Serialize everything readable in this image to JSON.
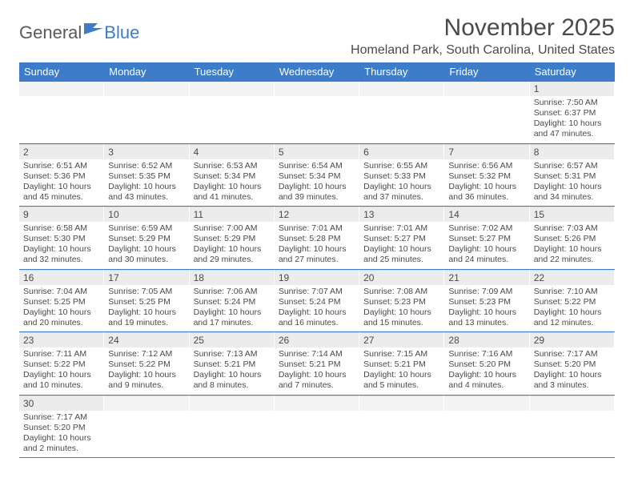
{
  "brand": {
    "part1": "General",
    "part2": "Blue"
  },
  "title": "November 2025",
  "location": "Homeland Park, South Carolina, United States",
  "colors": {
    "header_bg": "#3d7cc9",
    "header_text": "#ffffff",
    "daynum_bg": "#ececec",
    "text": "#4a4a4a",
    "row_border": "#3d7cc9"
  },
  "typography": {
    "title_fontsize": 30,
    "location_fontsize": 16,
    "dayhead_fontsize": 13,
    "daynum_fontsize": 12,
    "body_fontsize": 10.5
  },
  "day_headers": [
    "Sunday",
    "Monday",
    "Tuesday",
    "Wednesday",
    "Thursday",
    "Friday",
    "Saturday"
  ],
  "weeks": [
    [
      {
        "n": "",
        "sunrise": "",
        "sunset": "",
        "daylight": ""
      },
      {
        "n": "",
        "sunrise": "",
        "sunset": "",
        "daylight": ""
      },
      {
        "n": "",
        "sunrise": "",
        "sunset": "",
        "daylight": ""
      },
      {
        "n": "",
        "sunrise": "",
        "sunset": "",
        "daylight": ""
      },
      {
        "n": "",
        "sunrise": "",
        "sunset": "",
        "daylight": ""
      },
      {
        "n": "",
        "sunrise": "",
        "sunset": "",
        "daylight": ""
      },
      {
        "n": "1",
        "sunrise": "Sunrise: 7:50 AM",
        "sunset": "Sunset: 6:37 PM",
        "daylight": "Daylight: 10 hours and 47 minutes."
      }
    ],
    [
      {
        "n": "2",
        "sunrise": "Sunrise: 6:51 AM",
        "sunset": "Sunset: 5:36 PM",
        "daylight": "Daylight: 10 hours and 45 minutes."
      },
      {
        "n": "3",
        "sunrise": "Sunrise: 6:52 AM",
        "sunset": "Sunset: 5:35 PM",
        "daylight": "Daylight: 10 hours and 43 minutes."
      },
      {
        "n": "4",
        "sunrise": "Sunrise: 6:53 AM",
        "sunset": "Sunset: 5:34 PM",
        "daylight": "Daylight: 10 hours and 41 minutes."
      },
      {
        "n": "5",
        "sunrise": "Sunrise: 6:54 AM",
        "sunset": "Sunset: 5:34 PM",
        "daylight": "Daylight: 10 hours and 39 minutes."
      },
      {
        "n": "6",
        "sunrise": "Sunrise: 6:55 AM",
        "sunset": "Sunset: 5:33 PM",
        "daylight": "Daylight: 10 hours and 37 minutes."
      },
      {
        "n": "7",
        "sunrise": "Sunrise: 6:56 AM",
        "sunset": "Sunset: 5:32 PM",
        "daylight": "Daylight: 10 hours and 36 minutes."
      },
      {
        "n": "8",
        "sunrise": "Sunrise: 6:57 AM",
        "sunset": "Sunset: 5:31 PM",
        "daylight": "Daylight: 10 hours and 34 minutes."
      }
    ],
    [
      {
        "n": "9",
        "sunrise": "Sunrise: 6:58 AM",
        "sunset": "Sunset: 5:30 PM",
        "daylight": "Daylight: 10 hours and 32 minutes."
      },
      {
        "n": "10",
        "sunrise": "Sunrise: 6:59 AM",
        "sunset": "Sunset: 5:29 PM",
        "daylight": "Daylight: 10 hours and 30 minutes."
      },
      {
        "n": "11",
        "sunrise": "Sunrise: 7:00 AM",
        "sunset": "Sunset: 5:29 PM",
        "daylight": "Daylight: 10 hours and 29 minutes."
      },
      {
        "n": "12",
        "sunrise": "Sunrise: 7:01 AM",
        "sunset": "Sunset: 5:28 PM",
        "daylight": "Daylight: 10 hours and 27 minutes."
      },
      {
        "n": "13",
        "sunrise": "Sunrise: 7:01 AM",
        "sunset": "Sunset: 5:27 PM",
        "daylight": "Daylight: 10 hours and 25 minutes."
      },
      {
        "n": "14",
        "sunrise": "Sunrise: 7:02 AM",
        "sunset": "Sunset: 5:27 PM",
        "daylight": "Daylight: 10 hours and 24 minutes."
      },
      {
        "n": "15",
        "sunrise": "Sunrise: 7:03 AM",
        "sunset": "Sunset: 5:26 PM",
        "daylight": "Daylight: 10 hours and 22 minutes."
      }
    ],
    [
      {
        "n": "16",
        "sunrise": "Sunrise: 7:04 AM",
        "sunset": "Sunset: 5:25 PM",
        "daylight": "Daylight: 10 hours and 20 minutes."
      },
      {
        "n": "17",
        "sunrise": "Sunrise: 7:05 AM",
        "sunset": "Sunset: 5:25 PM",
        "daylight": "Daylight: 10 hours and 19 minutes."
      },
      {
        "n": "18",
        "sunrise": "Sunrise: 7:06 AM",
        "sunset": "Sunset: 5:24 PM",
        "daylight": "Daylight: 10 hours and 17 minutes."
      },
      {
        "n": "19",
        "sunrise": "Sunrise: 7:07 AM",
        "sunset": "Sunset: 5:24 PM",
        "daylight": "Daylight: 10 hours and 16 minutes."
      },
      {
        "n": "20",
        "sunrise": "Sunrise: 7:08 AM",
        "sunset": "Sunset: 5:23 PM",
        "daylight": "Daylight: 10 hours and 15 minutes."
      },
      {
        "n": "21",
        "sunrise": "Sunrise: 7:09 AM",
        "sunset": "Sunset: 5:23 PM",
        "daylight": "Daylight: 10 hours and 13 minutes."
      },
      {
        "n": "22",
        "sunrise": "Sunrise: 7:10 AM",
        "sunset": "Sunset: 5:22 PM",
        "daylight": "Daylight: 10 hours and 12 minutes."
      }
    ],
    [
      {
        "n": "23",
        "sunrise": "Sunrise: 7:11 AM",
        "sunset": "Sunset: 5:22 PM",
        "daylight": "Daylight: 10 hours and 10 minutes."
      },
      {
        "n": "24",
        "sunrise": "Sunrise: 7:12 AM",
        "sunset": "Sunset: 5:22 PM",
        "daylight": "Daylight: 10 hours and 9 minutes."
      },
      {
        "n": "25",
        "sunrise": "Sunrise: 7:13 AM",
        "sunset": "Sunset: 5:21 PM",
        "daylight": "Daylight: 10 hours and 8 minutes."
      },
      {
        "n": "26",
        "sunrise": "Sunrise: 7:14 AM",
        "sunset": "Sunset: 5:21 PM",
        "daylight": "Daylight: 10 hours and 7 minutes."
      },
      {
        "n": "27",
        "sunrise": "Sunrise: 7:15 AM",
        "sunset": "Sunset: 5:21 PM",
        "daylight": "Daylight: 10 hours and 5 minutes."
      },
      {
        "n": "28",
        "sunrise": "Sunrise: 7:16 AM",
        "sunset": "Sunset: 5:20 PM",
        "daylight": "Daylight: 10 hours and 4 minutes."
      },
      {
        "n": "29",
        "sunrise": "Sunrise: 7:17 AM",
        "sunset": "Sunset: 5:20 PM",
        "daylight": "Daylight: 10 hours and 3 minutes."
      }
    ],
    [
      {
        "n": "30",
        "sunrise": "Sunrise: 7:17 AM",
        "sunset": "Sunset: 5:20 PM",
        "daylight": "Daylight: 10 hours and 2 minutes."
      },
      {
        "n": "",
        "sunrise": "",
        "sunset": "",
        "daylight": ""
      },
      {
        "n": "",
        "sunrise": "",
        "sunset": "",
        "daylight": ""
      },
      {
        "n": "",
        "sunrise": "",
        "sunset": "",
        "daylight": ""
      },
      {
        "n": "",
        "sunrise": "",
        "sunset": "",
        "daylight": ""
      },
      {
        "n": "",
        "sunrise": "",
        "sunset": "",
        "daylight": ""
      },
      {
        "n": "",
        "sunrise": "",
        "sunset": "",
        "daylight": ""
      }
    ]
  ]
}
